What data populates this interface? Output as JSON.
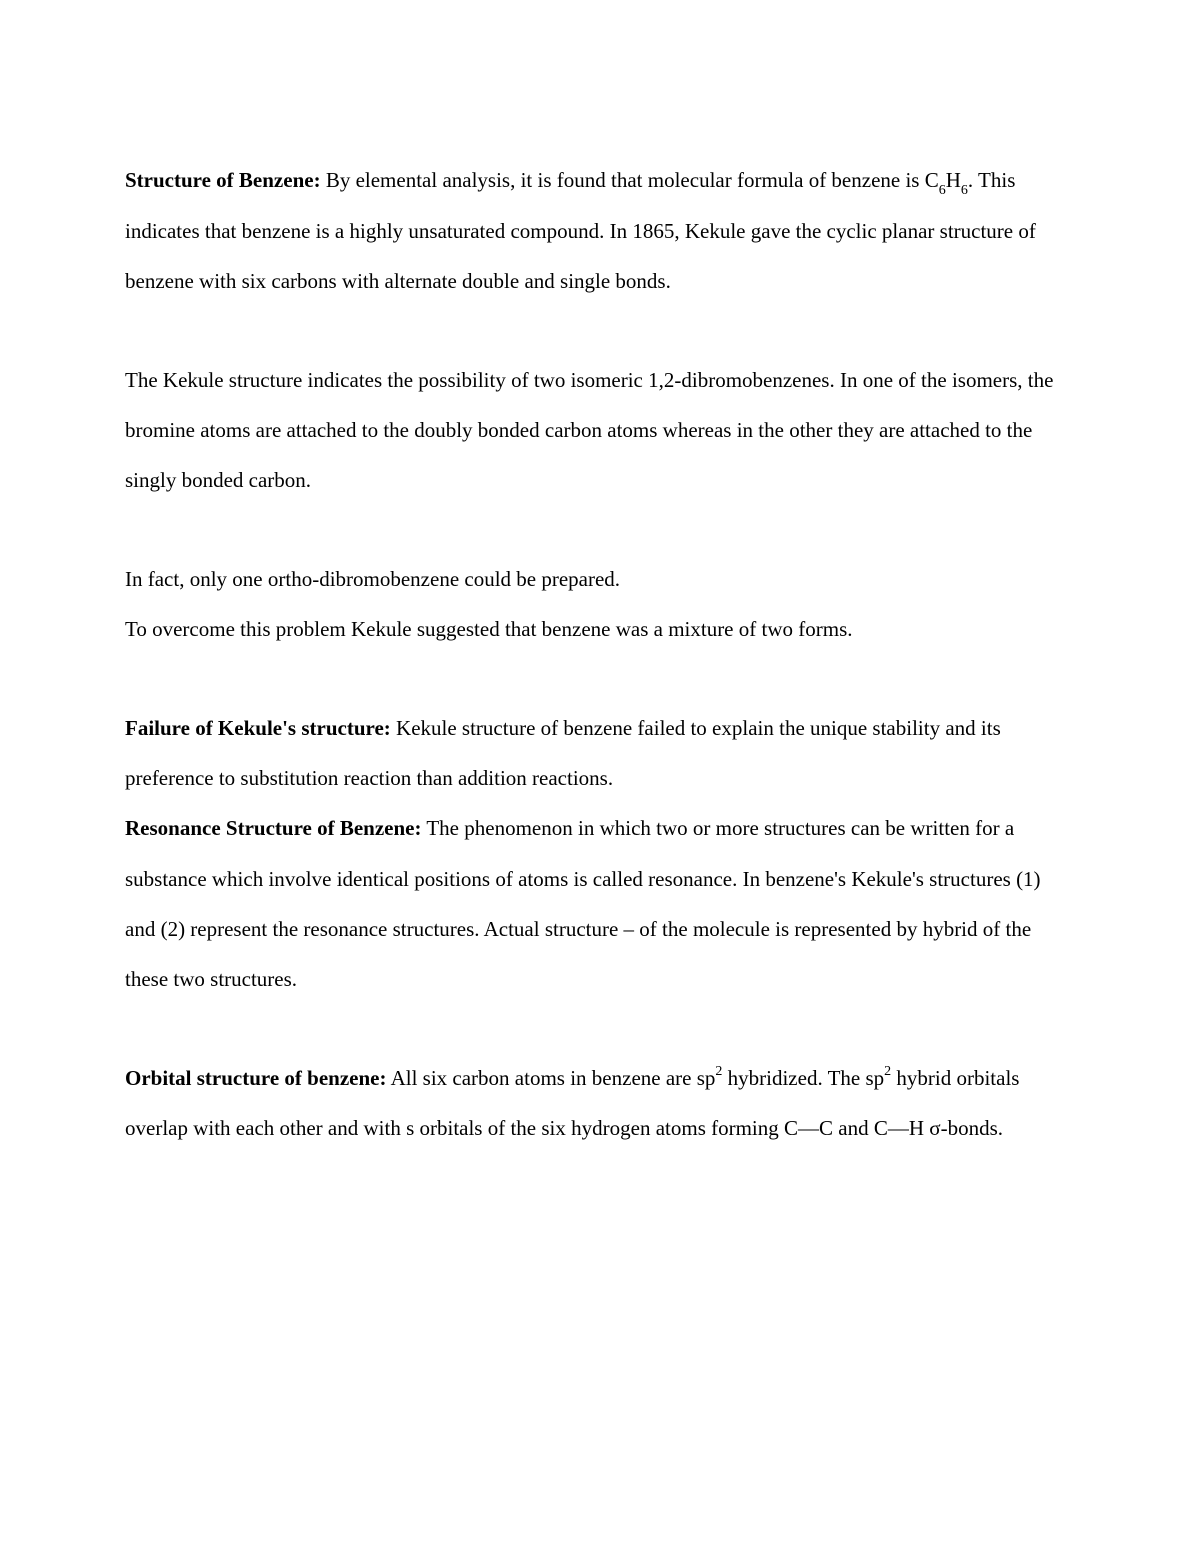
{
  "p1": {
    "heading": "Structure of Benzene:",
    "text1": " By elemental analysis, it is found that molecular formula of benzene is C",
    "sub1": "6",
    "text2": "H",
    "sub2": "6",
    "text3": ". This indicates that benzene is a highly unsaturated compound. In 1865, Kekule gave the cyclic planar structure of benzene with six carbons with alternate double and single bonds."
  },
  "p2": {
    "text": "The Kekule structure indicates the possibility of two isomeric 1,2-dibromobenzenes. In one of the isomers, the bromine atoms are attached to the doubly bonded carbon atoms whereas in the other they are attached to the singly bonded carbon."
  },
  "p3": {
    "line1": "In fact, only one ortho-dibromobenzene could be prepared.",
    "line2": "To overcome this problem Kekule suggested that benzene was a mixture of two forms."
  },
  "p4a": {
    "heading": "Failure of Kekule's structure:",
    "text": " Kekule structure of benzene failed to explain the unique stability and its preference to substitution reaction than addition reactions."
  },
  "p4b": {
    "heading": "Resonance Structure of Benzene:",
    "text": " The phenomenon in which two or more structures can be written for a substance which involve identical positions of atoms is called resonance. In benzene's Kekule's structures (1) and (2) represent the resonance structures. Actual structure – of the molecule is represented by hybrid of the these two structures."
  },
  "p5": {
    "heading": "Orbital structure of benzene:",
    "text1": " All six carbon atoms in benzene are sp",
    "sup1": "2",
    "text2": " hybridized. The sp",
    "sup2": "2",
    "text3": " hybrid orbitals overlap with each other and with s orbitals of the six hydrogen atoms forming C—C and C—H σ-bonds."
  }
}
